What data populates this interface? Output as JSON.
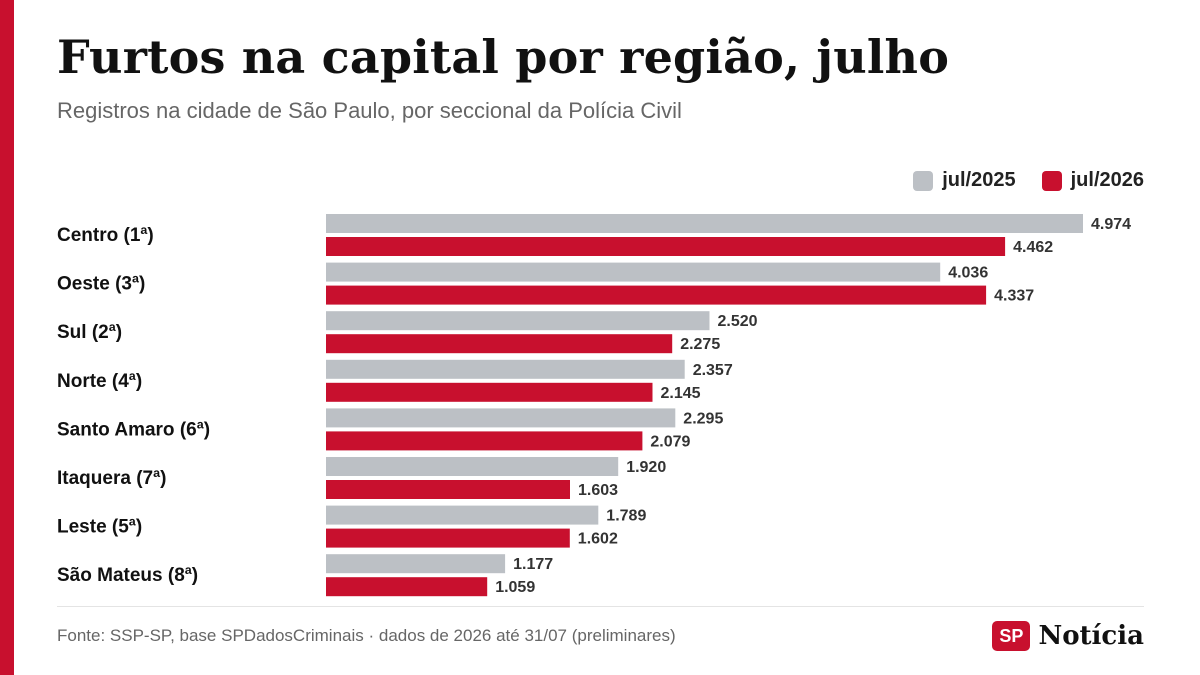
{
  "header": {
    "title": "Furtos na capital por região, julho",
    "subtitle": "Registros na cidade de São Paulo, por seccional da Polícia Civil"
  },
  "colors": {
    "accent": "#c8102e",
    "series_2025": "#bcc0c5",
    "series_2026": "#c8102e"
  },
  "legend": [
    {
      "label": "jul/2025",
      "color": "#bcc0c5"
    },
    {
      "label": "jul/2026",
      "color": "#c8102e"
    }
  ],
  "chart_data": {
    "type": "bar",
    "orientation": "horizontal",
    "categories": [
      "Centro (1ª)",
      "Oeste (3ª)",
      "Sul (2ª)",
      "Norte (4ª)",
      "Santo Amaro (6ª)",
      "Itaquera (7ª)",
      "Leste (5ª)",
      "São Mateus (8ª)"
    ],
    "series": [
      {
        "name": "jul/2025",
        "values": [
          4974,
          4036,
          2520,
          2357,
          2295,
          1920,
          1789,
          1177
        ],
        "labels": [
          "4.974",
          "4.036",
          "2.520",
          "2.357",
          "2.295",
          "1.920",
          "1.789",
          "1.177"
        ]
      },
      {
        "name": "jul/2026",
        "values": [
          4462,
          4337,
          2275,
          2145,
          2079,
          1603,
          1602,
          1059
        ],
        "labels": [
          "4.462",
          "4.337",
          "2.275",
          "2.145",
          "2.079",
          "1.603",
          "1.602",
          "1.059"
        ]
      }
    ],
    "title": "Furtos na capital por região, julho",
    "xlim": [
      0,
      5000
    ],
    "grid": false,
    "legend_position": "top-right"
  },
  "footer": {
    "source": "Fonte: SSP-SP, base SPDadosCriminais · dados de 2026 até 31/07 (preliminares)",
    "brand_badge": "SP",
    "brand_name": "Notícia"
  }
}
